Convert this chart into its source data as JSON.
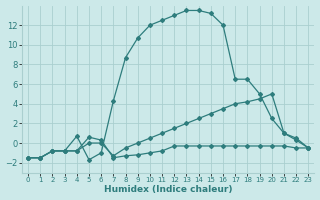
{
  "xlabel": "Humidex (Indice chaleur)",
  "xlim": [
    -0.5,
    23.5
  ],
  "ylim": [
    -3,
    14
  ],
  "yticks": [
    -2,
    0,
    2,
    4,
    6,
    8,
    10,
    12
  ],
  "xticks": [
    0,
    1,
    2,
    3,
    4,
    5,
    6,
    7,
    8,
    9,
    10,
    11,
    12,
    13,
    14,
    15,
    16,
    17,
    18,
    19,
    20,
    21,
    22,
    23
  ],
  "bg_color": "#cce9e9",
  "grid_color": "#aacfcf",
  "line_color": "#2e7d7d",
  "series1_x": [
    0,
    1,
    2,
    3,
    4,
    5,
    6,
    7,
    8,
    9,
    10,
    11,
    12,
    13,
    14,
    15,
    16,
    17,
    18,
    19,
    20,
    21,
    22,
    23
  ],
  "series1_y": [
    -1.5,
    -1.5,
    -0.8,
    -0.8,
    -0.8,
    0.6,
    0.3,
    -1.5,
    -1.3,
    -1.2,
    -1.0,
    -0.8,
    -0.3,
    -0.3,
    -0.3,
    -0.3,
    -0.3,
    -0.3,
    -0.3,
    -0.3,
    -0.3,
    -0.3,
    -0.5,
    -0.5
  ],
  "series2_x": [
    0,
    1,
    2,
    3,
    4,
    5,
    6,
    7,
    8,
    9,
    10,
    11,
    12,
    13,
    14,
    15,
    16,
    17,
    18,
    19,
    20,
    21,
    22,
    23
  ],
  "series2_y": [
    -1.5,
    -1.5,
    -0.8,
    -0.8,
    -0.8,
    0.0,
    0.0,
    -1.3,
    -0.5,
    0.0,
    0.5,
    1.0,
    1.5,
    2.0,
    2.5,
    3.0,
    3.5,
    4.0,
    4.2,
    4.5,
    5.0,
    1.0,
    0.3,
    -0.5
  ],
  "series3_x": [
    0,
    1,
    2,
    3,
    4,
    5,
    6,
    7,
    8,
    9,
    10,
    11,
    12,
    13,
    14,
    15,
    16,
    17,
    18,
    19,
    20,
    21,
    22,
    23
  ],
  "series3_y": [
    -1.5,
    -1.5,
    -0.8,
    -0.8,
    0.7,
    -1.7,
    -1.0,
    4.3,
    8.7,
    10.7,
    12.0,
    12.5,
    13.0,
    13.5,
    13.5,
    13.2,
    12.0,
    6.5,
    6.5,
    5.0,
    2.5,
    1.0,
    0.5,
    -0.5
  ]
}
